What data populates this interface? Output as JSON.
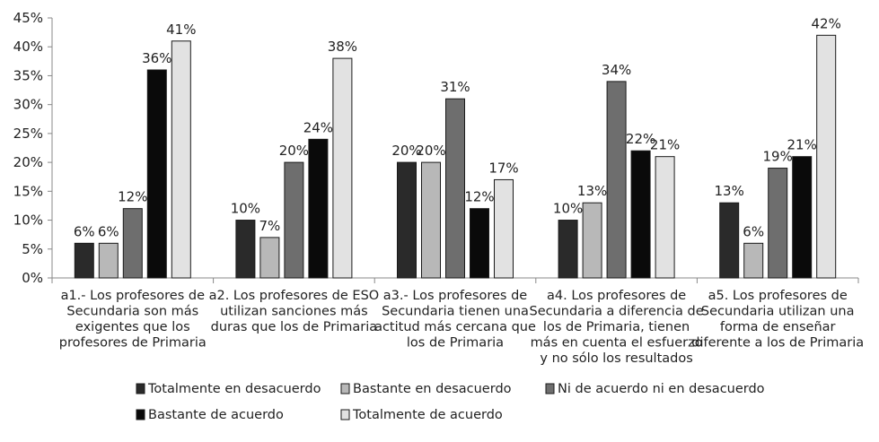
{
  "chart_data": {
    "type": "bar",
    "title": "",
    "xlabel": "",
    "ylabel": "",
    "ylim": [
      0,
      45
    ],
    "yticks": [
      "0%",
      "5%",
      "10%",
      "15%",
      "20%",
      "25%",
      "30%",
      "35%",
      "40%",
      "45%"
    ],
    "grid": false,
    "legend_position": "bottom",
    "categories": [
      [
        "a1.- Los profesores de",
        "Secundaria son más",
        "exigentes que los",
        "profesores de Primaria"
      ],
      [
        "a2. Los profesores de ESO",
        "utilizan sanciones más",
        "duras que los de Primaria"
      ],
      [
        "a3.- Los profesores de",
        "Secundaria tienen una",
        "actitud más cercana  que",
        "los de Primaria"
      ],
      [
        "a4. Los profesores de",
        "Secundaria a diferencia de",
        "los de Primaria, tienen",
        "más en cuenta el esfuerzo",
        "y no sólo los resultados"
      ],
      [
        "a5. Los profesores de",
        "Secundaria utilizan una",
        "forma de enseñar",
        "diferente a los de Primaria"
      ]
    ],
    "series": [
      {
        "name": "Totalmente en desacuerdo",
        "color": "#2a2a2a",
        "values": [
          6,
          10,
          20,
          10,
          13
        ],
        "labels": [
          "6%",
          "10%",
          "20%",
          "10%",
          "13%"
        ]
      },
      {
        "name": "Bastante en desacuerdo",
        "color": "#b8b8b8",
        "values": [
          6,
          7,
          20,
          13,
          6
        ],
        "labels": [
          "6%",
          "7%",
          "20%",
          "13%",
          "6%"
        ]
      },
      {
        "name": "Ni de acuerdo ni en desacuerdo",
        "color": "#6e6e6e",
        "values": [
          12,
          20,
          31,
          34,
          19
        ],
        "labels": [
          "12%",
          "20%",
          "31%",
          "34%",
          "19%"
        ]
      },
      {
        "name": "Bastante de acuerdo",
        "color": "#0a0a0a",
        "values": [
          36,
          24,
          12,
          22,
          21
        ],
        "labels": [
          "36%",
          "24%",
          "12%",
          "22%",
          "21%"
        ]
      },
      {
        "name": "Totalmente de acuerdo",
        "color": "#e2e2e2",
        "values": [
          41,
          38,
          17,
          21,
          42
        ],
        "labels": [
          "41%",
          "38%",
          "17%",
          "21%",
          "42%"
        ]
      }
    ]
  }
}
